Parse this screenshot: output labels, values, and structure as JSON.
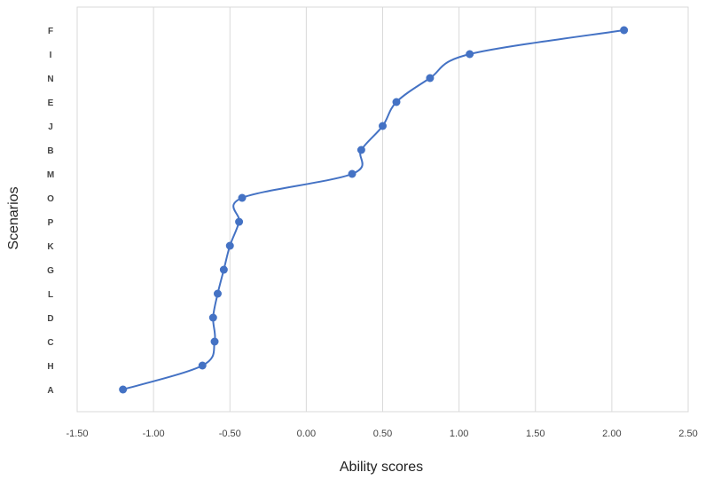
{
  "chart_data": {
    "type": "line",
    "title": "",
    "xlabel": "Ability scores",
    "ylabel": "Scenarios",
    "xlim": [
      -1.5,
      2.5
    ],
    "x_ticks": [
      "-1.50",
      "-1.00",
      "-0.50",
      "0.00",
      "0.50",
      "1.00",
      "1.50",
      "2.00",
      "2.50"
    ],
    "x_tick_values": [
      -1.5,
      -1.0,
      -0.5,
      0.0,
      0.5,
      1.0,
      1.5,
      2.0,
      2.5
    ],
    "categories": [
      "A",
      "H",
      "C",
      "D",
      "L",
      "G",
      "K",
      "P",
      "O",
      "M",
      "B",
      "J",
      "E",
      "N",
      "I",
      "F"
    ],
    "values": [
      -1.2,
      -0.68,
      -0.6,
      -0.61,
      -0.58,
      -0.54,
      -0.5,
      -0.44,
      -0.42,
      0.3,
      0.36,
      0.5,
      0.59,
      0.81,
      1.07,
      2.08
    ],
    "grid": {
      "vertical": true,
      "horizontal": false
    },
    "legend": "none",
    "smooth": true,
    "colors": {
      "series": "#4472C4",
      "grid": "#d9d9d9",
      "border": "#d9d9d9"
    }
  }
}
